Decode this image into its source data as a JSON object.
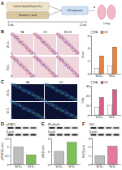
{
  "panel_labels": [
    "A",
    "B",
    "C",
    "D",
    "E",
    "F"
  ],
  "schematic": {
    "diets": [
      "Control food (Vitamin D+)",
      "Vitamin D- food"
    ],
    "exposure": "O3 exposure",
    "organ": "Lung",
    "timeline": [
      "0 wk",
      "12 wk"
    ]
  },
  "image_panels": [
    {
      "columns": [
        "FA",
        "O3",
        "Wt O3"
      ],
      "rows": [
        "Vit D+",
        "Vit D-"
      ]
    },
    {
      "columns": [
        "FA",
        "O3"
      ],
      "rows": [
        "Vit D+",
        "Vit D-"
      ]
    }
  ],
  "blots": [
    {
      "protein": "pSTAT3",
      "loading": "β-actin"
    },
    {
      "protein": "NF-κB p65",
      "loading": "β-actin"
    },
    {
      "protein": "Nrf2",
      "loading": "β-actin"
    }
  ],
  "chart_data": [
    {
      "type": "bar",
      "ylabel": "Score",
      "categories": [
        "Vit D+",
        "Vit D-"
      ],
      "series": [
        {
          "name": "FA",
          "color": "#ffffff",
          "values": [
            0.8,
            1.2
          ]
        },
        {
          "name": "O3",
          "color": "#e8833a",
          "values": [
            2.8,
            4.2
          ]
        }
      ],
      "ylim": [
        0,
        6
      ],
      "yticks": [
        0,
        2,
        4,
        6
      ],
      "legend": "top-left"
    },
    {
      "type": "bar",
      "ylabel": "Cells",
      "categories": [
        "Vit D+",
        "Vit D-"
      ],
      "series": [
        {
          "name": "FA",
          "color": "#ffffff",
          "values": [
            8,
            10
          ]
        },
        {
          "name": "O3",
          "color": "#d95f8a",
          "values": [
            18,
            26
          ]
        }
      ],
      "ylim": [
        0,
        30
      ],
      "yticks": [
        0,
        10,
        20,
        30
      ],
      "legend": "top-left"
    },
    {
      "type": "bar",
      "ylabel": "pSTAT3/β-actin",
      "categories": [
        "Vit D+",
        "Vit D-"
      ],
      "values": [
        1.0,
        0.55
      ],
      "colors": [
        "#bdbdbd",
        "#7fbf5a"
      ],
      "ylim": [
        0,
        1.5
      ],
      "yticks": [
        0,
        0.5,
        1,
        1.5
      ]
    },
    {
      "type": "bar",
      "ylabel": "p65/β-actin",
      "categories": [
        "Vit D+",
        "Vit D-"
      ],
      "values": [
        1.0,
        1.7
      ],
      "colors": [
        "#bdbdbd",
        "#7fbf5a"
      ],
      "ylim": [
        0,
        2
      ],
      "yticks": [
        0,
        1,
        2
      ]
    },
    {
      "type": "bar",
      "ylabel": "Nrf2/β-actin",
      "categories": [
        "Vit D+",
        "Vit D-"
      ],
      "values": [
        1.0,
        2.1
      ],
      "colors": [
        "#bdbdbd",
        "#e07b9a"
      ],
      "ylim": [
        0,
        3
      ],
      "yticks": [
        0,
        1,
        2,
        3
      ]
    }
  ]
}
